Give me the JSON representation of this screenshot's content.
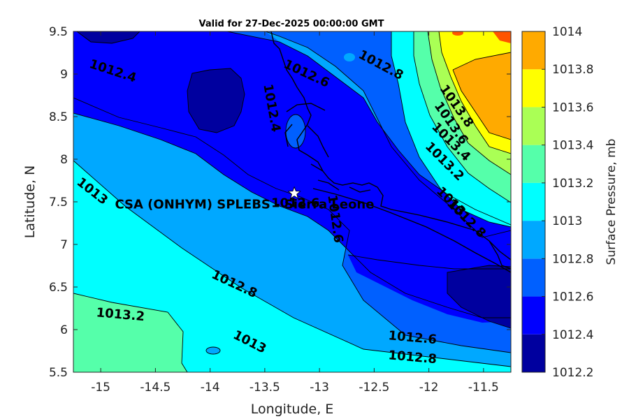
{
  "chart_data": {
    "type": "contour-map",
    "title": "Valid for 27-Dec-2025 00:00:00 GMT",
    "xlabel": "Longitude, E",
    "ylabel": "Latitude, N",
    "xlim": [
      -15.25,
      -11.25
    ],
    "ylim": [
      5.5,
      9.5
    ],
    "x_ticks": [
      "-15",
      "-14.5",
      "-14",
      "-13.5",
      "-13",
      "-12.5",
      "-12",
      "-11.5"
    ],
    "y_ticks": [
      "9.5",
      "9",
      "8.5",
      "8",
      "7.5",
      "7",
      "6.5",
      "6",
      "5.5"
    ],
    "colorbar": {
      "label": "Surface Pressure, mb",
      "ticks": [
        "1014",
        "1013.8",
        "1013.6",
        "1013.4",
        "1013.2",
        "1013",
        "1012.8",
        "1012.6",
        "1012.4",
        "1012.2"
      ],
      "levels": [
        1012.2,
        1012.4,
        1012.6,
        1012.8,
        1013.0,
        1013.2,
        1013.4,
        1013.6,
        1013.8,
        1014.0
      ],
      "colors": [
        "#00009f",
        "#0000ff",
        "#0060ff",
        "#00a8ff",
        "#00ffff",
        "#55ffaa",
        "#aaff55",
        "#ffff00",
        "#ffaa00",
        "#ff5500"
      ]
    },
    "contour_labels": [
      {
        "text": "1012.4",
        "lon": -14.89,
        "lat": 9.03,
        "angle": 18
      },
      {
        "text": "1012.4",
        "lon": -13.44,
        "lat": 8.6,
        "angle": 80
      },
      {
        "text": "1012.6",
        "lon": -13.12,
        "lat": 9.0,
        "angle": 25
      },
      {
        "text": "1012.8",
        "lon": -12.44,
        "lat": 9.1,
        "angle": 28
      },
      {
        "text": "1013.8",
        "lon": -11.75,
        "lat": 8.62,
        "angle": 55
      },
      {
        "text": "1013.6",
        "lon": -11.8,
        "lat": 8.42,
        "angle": 55
      },
      {
        "text": "1013.4",
        "lon": -11.8,
        "lat": 8.2,
        "angle": 45
      },
      {
        "text": "1013.2",
        "lon": -11.86,
        "lat": 7.97,
        "angle": 45
      },
      {
        "text": "1013",
        "lon": -11.8,
        "lat": 7.5,
        "angle": 45
      },
      {
        "text": "1012.8",
        "lon": -11.66,
        "lat": 7.3,
        "angle": 45
      },
      {
        "text": "1013",
        "lon": -15.08,
        "lat": 7.62,
        "angle": 38
      },
      {
        "text": "1012.6",
        "lon": -13.22,
        "lat": 7.48,
        "angle": 0
      },
      {
        "text": "1012.6",
        "lon": -12.86,
        "lat": 7.3,
        "angle": 82
      },
      {
        "text": "1012.8",
        "lon": -13.78,
        "lat": 6.53,
        "angle": 25
      },
      {
        "text": "1013.2",
        "lon": -14.82,
        "lat": 6.17,
        "angle": 5
      },
      {
        "text": "1013",
        "lon": -13.64,
        "lat": 5.85,
        "angle": 27
      },
      {
        "text": "1012.6",
        "lon": -12.15,
        "lat": 5.9,
        "angle": 5
      },
      {
        "text": "1012.8",
        "lon": -12.15,
        "lat": 5.67,
        "angle": 5
      }
    ],
    "station": {
      "name": "CSA (ONHYM) SPLEBS - Sierra Leone",
      "lon": -13.23,
      "lat": 7.6,
      "label_lon": -14.87,
      "label_lat": 7.47
    }
  }
}
